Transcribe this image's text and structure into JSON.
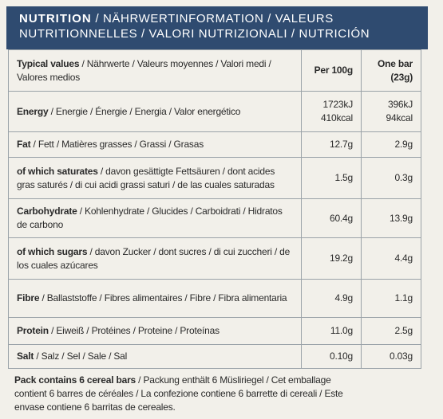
{
  "header": {
    "title_bold": "NUTRITION",
    "title_rest": "/ NÄHRWERTINFORMATION / VALEURS NUTRITIONNELLES / VALORI NUTRIZIONALI / NUTRICIÓN"
  },
  "table": {
    "columns": {
      "label_bold": "Typical values",
      "label_rest": "/ Nährwerte / Valeurs moyennes / Valori medi / Valores medios",
      "per_100g": "Per 100g",
      "per_bar": [
        "One bar",
        "(23g)"
      ]
    },
    "rows": [
      {
        "label_bold": "Energy",
        "label_rest": "/ Energie / Énergie / Energia / Valor energético",
        "per_100g": [
          "1723kJ",
          "410kcal"
        ],
        "per_bar": [
          "396kJ",
          "94kcal"
        ]
      },
      {
        "label_bold": "Fat",
        "label_rest": "/ Fett / Matières grasses / Grassi / Grasas",
        "per_100g": [
          "12.7g"
        ],
        "per_bar": [
          "2.9g"
        ]
      },
      {
        "label_bold": "of which saturates",
        "label_rest": "/ davon gesättigte Fettsäuren / dont acides gras saturés / di cui acidi grassi saturi / de las cuales saturadas",
        "per_100g": [
          "1.5g"
        ],
        "per_bar": [
          "0.3g"
        ]
      },
      {
        "label_bold": "Carbohydrate",
        "label_rest": "/ Kohlenhydrate / Glucides / Carboidrati / Hidratos de carbono",
        "per_100g": [
          "60.4g"
        ],
        "per_bar": [
          "13.9g"
        ]
      },
      {
        "label_bold": "of which sugars",
        "label_rest": "/ davon Zucker / dont sucres / di cui zuccheri / de los cuales azúcares",
        "per_100g": [
          "19.2g"
        ],
        "per_bar": [
          "4.4g"
        ]
      },
      {
        "label_bold": "Fibre",
        "label_rest": "/ Ballaststoffe / Fibres alimentaires / Fibre / Fibra alimentaria",
        "per_100g": [
          "4.9g"
        ],
        "per_bar": [
          "1.1g"
        ]
      },
      {
        "label_bold": "Protein",
        "label_rest": "/ Eiweiß / Protéines / Proteine / Proteínas",
        "per_100g": [
          "11.0g"
        ],
        "per_bar": [
          "2.5g"
        ]
      },
      {
        "label_bold": "Salt",
        "label_rest": "/ Salz / Sel / Sale / Sal",
        "per_100g": [
          "0.10g"
        ],
        "per_bar": [
          "0.03g"
        ]
      }
    ]
  },
  "footer": {
    "text_bold": "Pack contains 6 cereal bars",
    "text_rest": "/ Packung enthält 6 Müsliriegel / Cet emballage contient 6 barres de céréales / La confezione contiene 6 barrette di cereali / Este envase contiene 6 barritas de cereales."
  }
}
